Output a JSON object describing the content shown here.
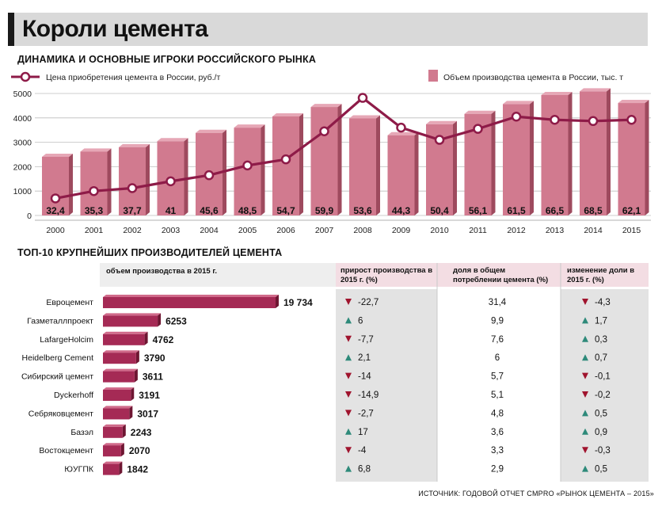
{
  "title": "Короли цемента",
  "source": "ИСТОЧНИК: ГОДОВОЙ ОТЧЕТ CMPRO «РЫНОК ЦЕМЕНТА – 2015»",
  "colors": {
    "bar": "#d17a8f",
    "bar_side": "#9e4a5e",
    "line": "#8e1b48",
    "table_bar": "#a52a55",
    "panel": "#e3e3e3",
    "header_pink": "#f3dde3"
  },
  "chart_data": [
    {
      "type": "bar+line",
      "title": "ДИНАМИКА И ОСНОВНЫЕ ИГРОКИ РОССИЙСКОГО РЫНКА",
      "categories": [
        "2000",
        "2001",
        "2002",
        "2003",
        "2004",
        "2005",
        "2006",
        "2007",
        "2008",
        "2009",
        "2010",
        "2011",
        "2012",
        "2013",
        "2014",
        "2015"
      ],
      "series": [
        {
          "name": "Объем производства цемента в России, тыс. т",
          "kind": "bar",
          "values": [
            32.4,
            35.3,
            37.7,
            41,
            45.6,
            48.5,
            54.7,
            59.9,
            53.6,
            44.3,
            50.4,
            56.1,
            61.5,
            66.5,
            68.5,
            62.1
          ],
          "labels": [
            "32,4",
            "35,3",
            "37,7",
            "41",
            "45,6",
            "48,5",
            "54,7",
            "59,9",
            "53,6",
            "44,3",
            "50,4",
            "56,1",
            "61,5",
            "66,5",
            "68,5",
            "62,1"
          ]
        },
        {
          "name": "Цена приобретения цемента в России, руб./т",
          "kind": "line",
          "values": [
            700,
            1000,
            1120,
            1400,
            1650,
            2050,
            2300,
            3450,
            4820,
            3600,
            3100,
            3550,
            4050,
            3920,
            3870,
            3920
          ]
        }
      ],
      "y_ticks": [
        "0",
        "1000",
        "2000",
        "3000",
        "4000",
        "5000"
      ],
      "ylim": [
        0,
        5000
      ]
    },
    {
      "type": "table",
      "title": "ТОП-10 КРУПНЕЙШИХ ПРОИЗВОДИТЕЛЕЙ ЦЕМЕНТА",
      "headers": {
        "volume": "объем производства в 2015 г.",
        "growth": "прирост производства в 2015 г. (%)",
        "share": "доля в общем потреблении цемента (%)",
        "share_change": "изменение доли в 2015 г. (%)"
      },
      "rows": [
        {
          "name": "Евроцемент",
          "volume": 19734,
          "volume_label": "19 734",
          "growth": "-22,7",
          "growth_dir": "down",
          "share": "31,4",
          "change": "-4,3",
          "change_dir": "down"
        },
        {
          "name": "Газметаллпроект",
          "volume": 6253,
          "volume_label": "6253",
          "growth": "6",
          "growth_dir": "up",
          "share": "9,9",
          "change": "1,7",
          "change_dir": "up"
        },
        {
          "name": "LafargeHolcim",
          "volume": 4762,
          "volume_label": "4762",
          "growth": "-7,7",
          "growth_dir": "down",
          "share": "7,6",
          "change": "0,3",
          "change_dir": "up"
        },
        {
          "name": "Heidelberg Cement",
          "volume": 3790,
          "volume_label": "3790",
          "growth": "2,1",
          "growth_dir": "up",
          "share": "6",
          "change": "0,7",
          "change_dir": "up"
        },
        {
          "name": "Сибирский цемент",
          "volume": 3611,
          "volume_label": "3611",
          "growth": "-14",
          "growth_dir": "down",
          "share": "5,7",
          "change": "-0,1",
          "change_dir": "down"
        },
        {
          "name": "Dyckerhoff",
          "volume": 3191,
          "volume_label": "3191",
          "growth": "-14,9",
          "growth_dir": "down",
          "share": "5,1",
          "change": "-0,2",
          "change_dir": "down"
        },
        {
          "name": "Себряковцемент",
          "volume": 3017,
          "volume_label": "3017",
          "growth": "-2,7",
          "growth_dir": "down",
          "share": "4,8",
          "change": "0,5",
          "change_dir": "up"
        },
        {
          "name": "Базэл",
          "volume": 2243,
          "volume_label": "2243",
          "growth": "17",
          "growth_dir": "up",
          "share": "3,6",
          "change": "0,9",
          "change_dir": "up"
        },
        {
          "name": "Востокцемент",
          "volume": 2070,
          "volume_label": "2070",
          "growth": "-4",
          "growth_dir": "down",
          "share": "3,3",
          "change": "-0,3",
          "change_dir": "down"
        },
        {
          "name": "ЮУГПК",
          "volume": 1842,
          "volume_label": "1842",
          "growth": "6,8",
          "growth_dir": "up",
          "share": "2,9",
          "change": "0,5",
          "change_dir": "up"
        }
      ]
    }
  ]
}
